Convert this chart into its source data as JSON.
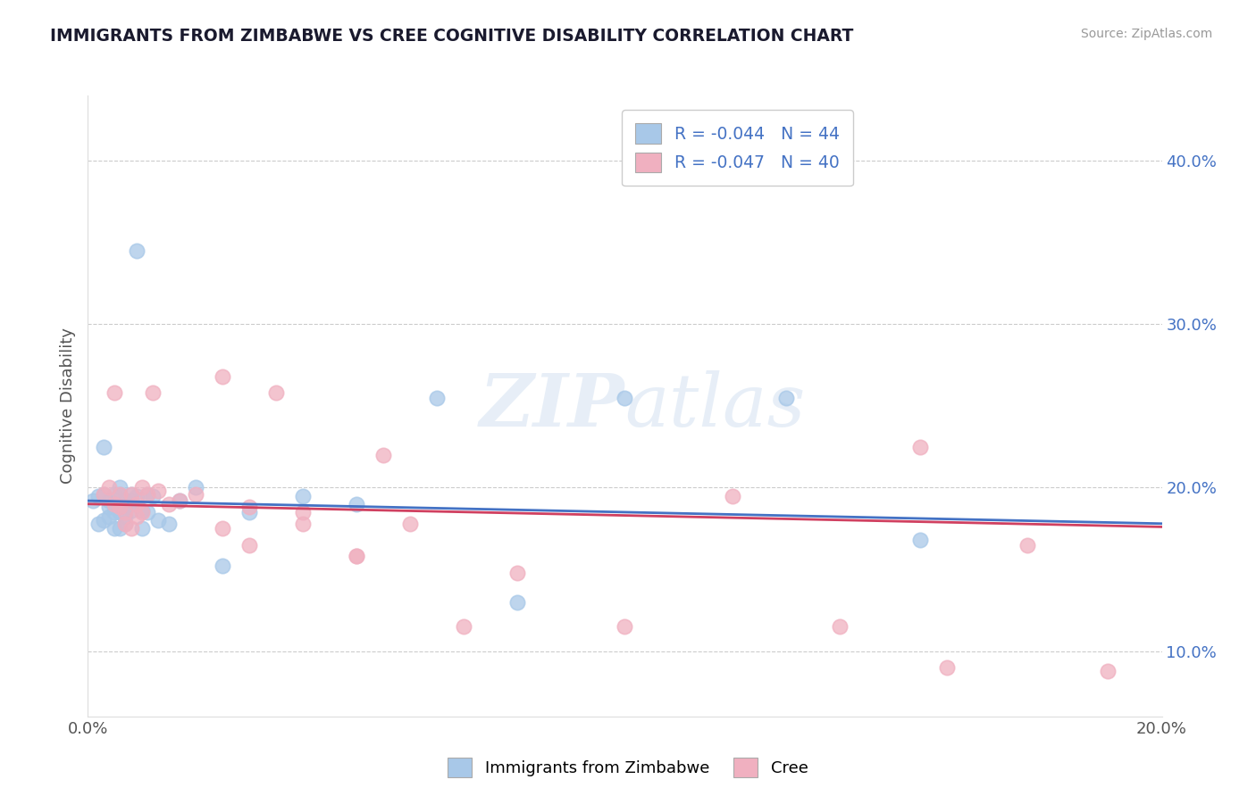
{
  "title": "IMMIGRANTS FROM ZIMBABWE VS CREE COGNITIVE DISABILITY CORRELATION CHART",
  "source": "Source: ZipAtlas.com",
  "ylabel": "Cognitive Disability",
  "legend_label1": "Immigrants from Zimbabwe",
  "legend_label2": "Cree",
  "r1": -0.044,
  "n1": 44,
  "r2": -0.047,
  "n2": 40,
  "xlim": [
    0.0,
    0.2
  ],
  "ylim": [
    0.06,
    0.44
  ],
  "color1": "#a8c8e8",
  "color2": "#f0b0c0",
  "line_color1": "#4472c4",
  "line_color2": "#d04060",
  "background_color": "#ffffff",
  "grid_color": "#cccccc",
  "watermark": "ZIPatlas",
  "scatter1_x": [
    0.001,
    0.002,
    0.002,
    0.003,
    0.003,
    0.003,
    0.004,
    0.004,
    0.004,
    0.005,
    0.005,
    0.005,
    0.005,
    0.006,
    0.006,
    0.006,
    0.006,
    0.007,
    0.007,
    0.007,
    0.007,
    0.008,
    0.008,
    0.008,
    0.009,
    0.009,
    0.01,
    0.01,
    0.011,
    0.011,
    0.012,
    0.013,
    0.015,
    0.017,
    0.02,
    0.025,
    0.03,
    0.04,
    0.05,
    0.065,
    0.08,
    0.1,
    0.13,
    0.155
  ],
  "scatter1_y": [
    0.192,
    0.195,
    0.178,
    0.196,
    0.225,
    0.18,
    0.192,
    0.188,
    0.182,
    0.196,
    0.19,
    0.185,
    0.175,
    0.2,
    0.196,
    0.185,
    0.175,
    0.192,
    0.188,
    0.182,
    0.178,
    0.196,
    0.192,
    0.186,
    0.345,
    0.195,
    0.186,
    0.175,
    0.196,
    0.185,
    0.195,
    0.18,
    0.178,
    0.192,
    0.2,
    0.152,
    0.185,
    0.195,
    0.19,
    0.255,
    0.13,
    0.255,
    0.255,
    0.168
  ],
  "scatter2_x": [
    0.003,
    0.004,
    0.005,
    0.005,
    0.006,
    0.006,
    0.007,
    0.007,
    0.008,
    0.008,
    0.009,
    0.009,
    0.01,
    0.01,
    0.011,
    0.012,
    0.013,
    0.015,
    0.017,
    0.02,
    0.025,
    0.03,
    0.035,
    0.04,
    0.05,
    0.055,
    0.06,
    0.08,
    0.1,
    0.12,
    0.14,
    0.155,
    0.16,
    0.175,
    0.19,
    0.025,
    0.03,
    0.04,
    0.05,
    0.07
  ],
  "scatter2_y": [
    0.196,
    0.2,
    0.19,
    0.258,
    0.196,
    0.188,
    0.185,
    0.178,
    0.196,
    0.175,
    0.19,
    0.182,
    0.2,
    0.185,
    0.196,
    0.258,
    0.198,
    0.19,
    0.192,
    0.196,
    0.268,
    0.165,
    0.258,
    0.185,
    0.158,
    0.22,
    0.178,
    0.148,
    0.115,
    0.195,
    0.115,
    0.225,
    0.09,
    0.165,
    0.088,
    0.175,
    0.188,
    0.178,
    0.158,
    0.115
  ],
  "right_yticks": [
    0.1,
    0.2,
    0.3,
    0.4
  ],
  "right_ytick_labels": [
    "10.0%",
    "20.0%",
    "30.0%",
    "40.0%"
  ],
  "bottom_legend_labels": [
    "Immigrants from Zimbabwe",
    "Cree"
  ]
}
